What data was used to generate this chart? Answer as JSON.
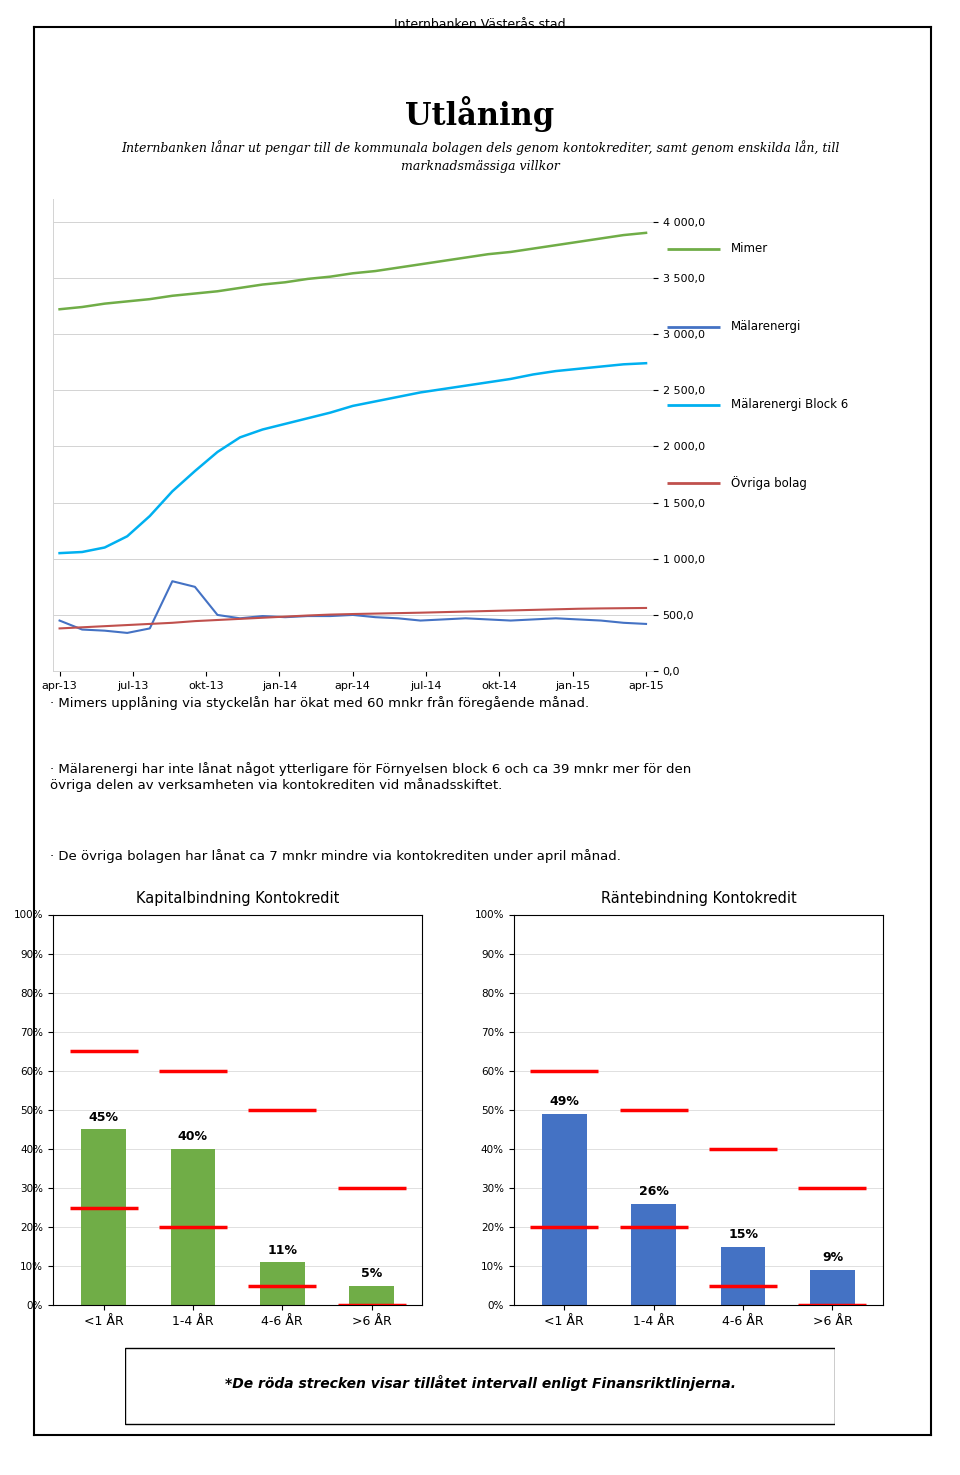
{
  "page_header": "Internbanken Västerås stad",
  "main_title": "Utlåning",
  "subtitle": "Internbanken lånar ut pengar till de kommunala bolagen dels genom kontokrediter, samt genom enskilda lån, till\nmarknadsmässiga villkor",
  "x_labels": [
    "apr-13",
    "jul-13",
    "okt-13",
    "jan-14",
    "apr-14",
    "jul-14",
    "okt-14",
    "jan-15",
    "apr-15"
  ],
  "y_ticks": [
    0.0,
    500.0,
    1000.0,
    1500.0,
    2000.0,
    2500.0,
    3000.0,
    3500.0,
    4000.0
  ],
  "mimer": [
    3220,
    3240,
    3270,
    3290,
    3310,
    3340,
    3360,
    3380,
    3410,
    3440,
    3460,
    3490,
    3510,
    3540,
    3560,
    3590,
    3620,
    3650,
    3680,
    3710,
    3730,
    3760,
    3790,
    3820,
    3850,
    3880,
    3900
  ],
  "malarenergi": [
    450,
    370,
    360,
    340,
    380,
    800,
    750,
    500,
    470,
    490,
    480,
    490,
    490,
    500,
    480,
    470,
    450,
    460,
    470,
    460,
    450,
    460,
    470,
    460,
    450,
    430,
    420
  ],
  "malarenergi_block6": [
    1050,
    1060,
    1100,
    1200,
    1380,
    1600,
    1780,
    1950,
    2080,
    2150,
    2200,
    2250,
    2300,
    2360,
    2400,
    2440,
    2480,
    2510,
    2540,
    2570,
    2600,
    2640,
    2670,
    2690,
    2710,
    2730,
    2740
  ],
  "ovriga_bolag": [
    380,
    390,
    400,
    410,
    420,
    430,
    445,
    455,
    465,
    475,
    485,
    495,
    503,
    508,
    512,
    516,
    520,
    525,
    530,
    535,
    540,
    545,
    550,
    555,
    558,
    560,
    562
  ],
  "mimer_color": "#70AD47",
  "malarenergi_color": "#4472C4",
  "malarenergi_block6_color": "#00B0F0",
  "ovriga_bolag_color": "#C0504D",
  "bullet1": "· Mimers upplåning via styckelån har ökat med 60 mnkr från föregående månad.",
  "bullet2": "· Mälarenergi har inte lånat något ytterligare för Förnyelsen block 6 och ca 39 mnkr mer för den\növriga delen av verksamheten via kontokrediten vid månadsskiftet.",
  "bullet3": "· De övriga bolagen har lånat ca 7 mnkr mindre via kontokrediten under april månad.",
  "kap_title": "Kapitalbindning Kontokredit",
  "rant_title": "Räntebindning Kontokredit",
  "bar_categories": [
    "<1 ÅR",
    "1-4 ÅR",
    "4-6 ÅR",
    ">6 ÅR"
  ],
  "kap_values": [
    45,
    40,
    11,
    5
  ],
  "rant_values": [
    49,
    26,
    15,
    9
  ],
  "bar_green": "#70AD47",
  "bar_blue": "#4472C4",
  "bar_red_line": "#FF0000",
  "kap_red_ranges": [
    [
      25,
      65
    ],
    [
      20,
      60
    ],
    [
      5,
      50
    ],
    [
      0,
      30
    ]
  ],
  "rant_red_ranges": [
    [
      20,
      60
    ],
    [
      20,
      50
    ],
    [
      5,
      40
    ],
    [
      0,
      30
    ]
  ],
  "footer": "*De röda strecken visar tillåtet intervall enligt Finansriktlinjerna."
}
